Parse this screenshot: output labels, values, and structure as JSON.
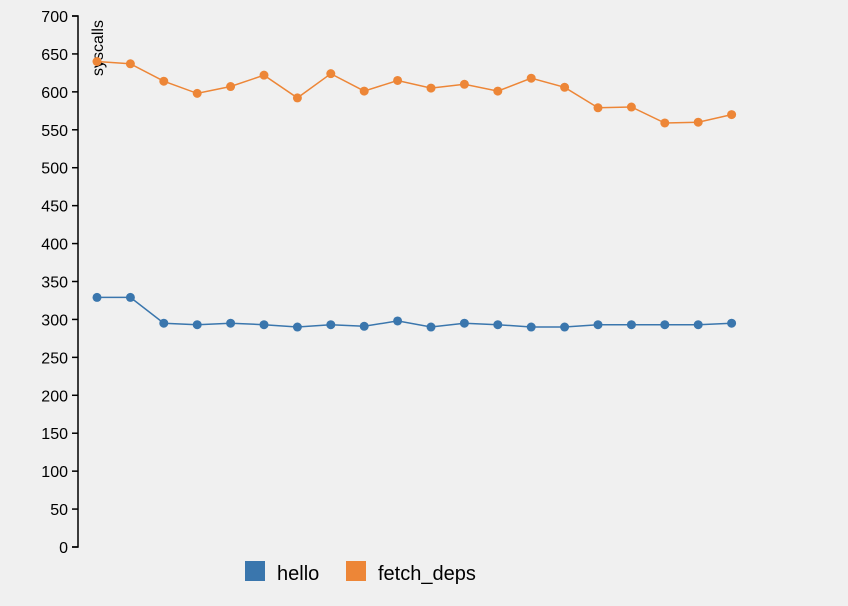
{
  "chart_data": {
    "type": "line",
    "title": "",
    "xlabel": "",
    "ylabel": "syscalls",
    "ylim": [
      0,
      700
    ],
    "yticks": [
      0,
      50,
      100,
      150,
      200,
      250,
      300,
      350,
      400,
      450,
      500,
      550,
      600,
      650,
      700
    ],
    "x": [
      1,
      2,
      3,
      4,
      5,
      6,
      7,
      8,
      9,
      10,
      11,
      12,
      13,
      14,
      15,
      16,
      17,
      18,
      19,
      20
    ],
    "grid": false,
    "legend_position": "bottom",
    "series": [
      {
        "name": "hello",
        "color": "#3a76ad",
        "values": [
          329,
          329,
          295,
          293,
          295,
          293,
          290,
          293,
          291,
          298,
          290,
          295,
          293,
          290,
          290,
          293,
          293,
          293,
          293,
          295
        ]
      },
      {
        "name": "fetch_deps",
        "color": "#ed8637",
        "values": [
          640,
          637,
          614,
          598,
          607,
          622,
          592,
          624,
          601,
          615,
          605,
          610,
          601,
          618,
          606,
          579,
          580,
          559,
          560,
          570
        ]
      }
    ]
  }
}
